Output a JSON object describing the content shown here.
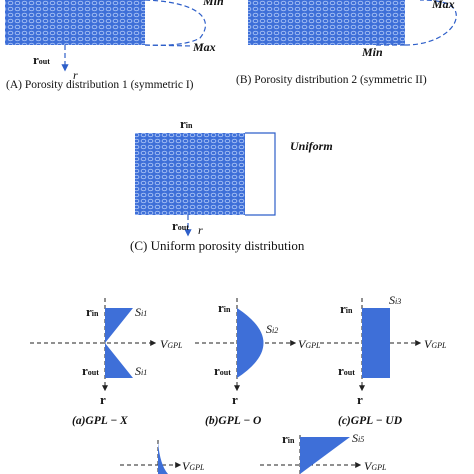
{
  "panel_a": {
    "min": "Min",
    "max": "Max",
    "r_out": {
      "base": "r",
      "sub": "out"
    },
    "r": "r",
    "caption": "(A) Porosity distribution 1 (symmetric I)"
  },
  "panel_b": {
    "min": "Min",
    "max": "Max",
    "caption": "(B) Porosity distribution 2 (symmetric II)"
  },
  "panel_c": {
    "r_in": {
      "base": "r",
      "sub": "in"
    },
    "label": "Uniform",
    "r_out": {
      "base": "r",
      "sub": "out"
    },
    "r": "r",
    "caption": "(C) Uniform porosity distribution"
  },
  "gpl_panels": [
    {
      "r_in": {
        "base": "r",
        "sub": "in"
      },
      "r_out": {
        "base": "r",
        "sub": "out"
      },
      "r": "r",
      "s_labels": [
        {
          "base": "S",
          "sub": "i1"
        },
        {
          "base": "S",
          "sub": "i1"
        }
      ],
      "v": {
        "base": "V",
        "sub": "GPL"
      },
      "caption": "(a)GPL − X"
    },
    {
      "r_in": {
        "base": "r",
        "sub": "in"
      },
      "r_out": {
        "base": "r",
        "sub": "out"
      },
      "r": "r",
      "s_labels": [
        {
          "base": "S",
          "sub": "i2"
        }
      ],
      "v": {
        "base": "V",
        "sub": "GPL"
      },
      "caption": "(b)GPL − O"
    },
    {
      "r_in": {
        "base": "r",
        "sub": "in"
      },
      "r_out": {
        "base": "r",
        "sub": "out"
      },
      "r": "r",
      "s_labels": [
        {
          "base": "S",
          "sub": "i3"
        }
      ],
      "v": {
        "base": "V",
        "sub": "GPL"
      },
      "caption": "(c)GPL − UD"
    },
    {
      "v": {
        "base": "V",
        "sub": "GPL"
      }
    },
    {
      "r_in": {
        "base": "r",
        "sub": "in"
      },
      "s_labels": [
        {
          "base": "S",
          "sub": "i5"
        }
      ],
      "v": {
        "base": "V",
        "sub": "GPL"
      }
    }
  ]
}
